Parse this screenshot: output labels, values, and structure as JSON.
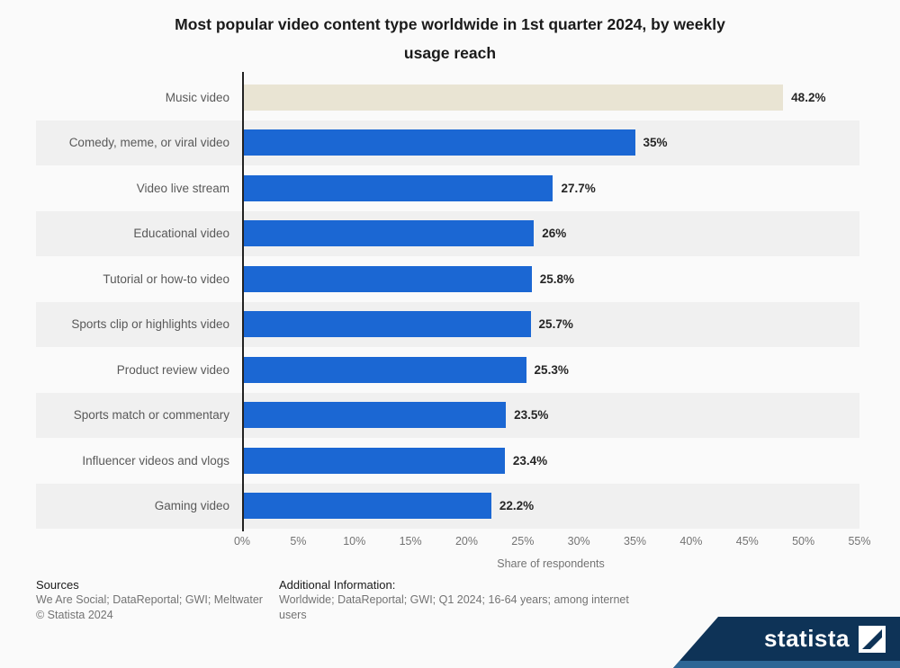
{
  "chart_data": {
    "type": "bar",
    "orientation": "horizontal",
    "title": "Most popular video content type worldwide in 1st quarter 2024, by weekly usage reach",
    "title_lines": [
      "Most popular video content type worldwide in 1st quarter 2024, by weekly",
      "usage reach"
    ],
    "categories": [
      "Music video",
      "Comedy, meme, or viral video",
      "Video live stream",
      "Educational video",
      "Tutorial or how-to video",
      "Sports clip or highlights video",
      "Product review video",
      "Sports match or commentary",
      "Influencer videos and vlogs",
      "Gaming video"
    ],
    "values": [
      48.2,
      35,
      27.7,
      26,
      25.8,
      25.7,
      25.3,
      23.5,
      23.4,
      22.2
    ],
    "value_labels": [
      "48.2%",
      "35%",
      "27.7%",
      "26%",
      "25.8%",
      "25.7%",
      "25.3%",
      "23.5%",
      "23.4%",
      "22.2%"
    ],
    "xlabel": "Share of respondents",
    "xlim": [
      0,
      55
    ],
    "ticks": [
      "0%",
      "5%",
      "10%",
      "15%",
      "20%",
      "25%",
      "30%",
      "35%",
      "40%",
      "45%",
      "50%",
      "55%"
    ],
    "highlight_index": 0,
    "grid": false,
    "legend": "none",
    "colors": {
      "bar": "#1b67d3",
      "highlight_bar": "#e9e4d3",
      "row_stripe": "#f0f0f0",
      "banner_navy": "#0e3357",
      "banner_strip": "#2d6695"
    }
  },
  "footer": {
    "sources_label": "Sources",
    "sources_line1": "We Are Social; DataReportal; GWI; Meltwater",
    "sources_line2": "© Statista 2024",
    "additional_label": "Additional Information:",
    "additional_text": "Worldwide; DataReportal; GWI; Q1 2024; 16-64 years; among internet users"
  },
  "branding": {
    "logo_text": "statista"
  }
}
